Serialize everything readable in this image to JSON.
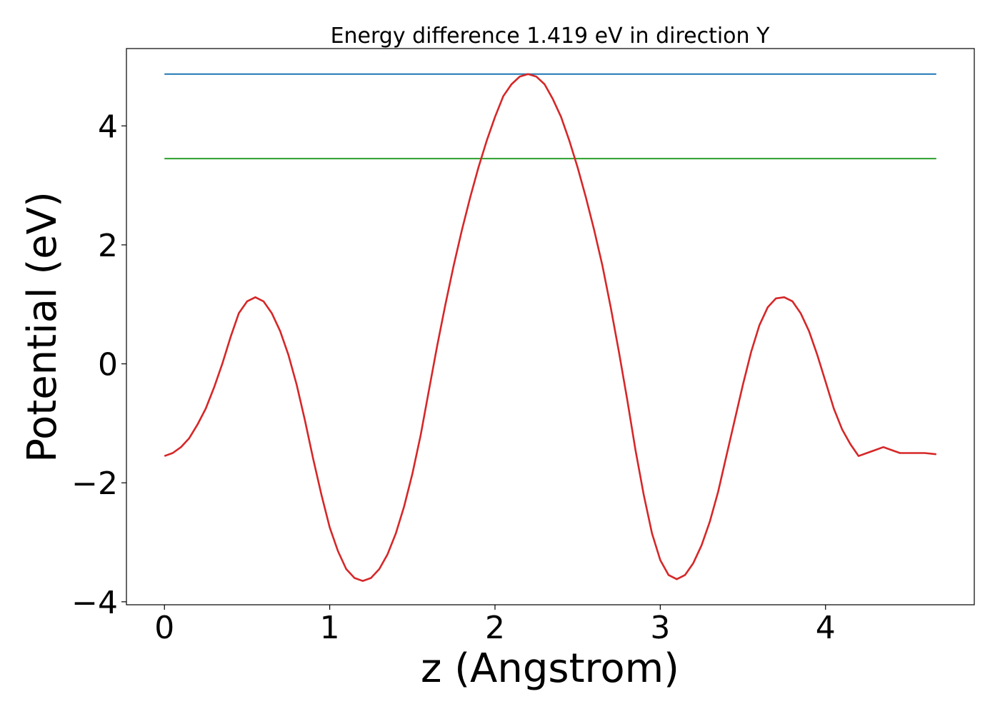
{
  "chart_data": {
    "type": "line",
    "title": "Energy difference 1.419 eV in direction Y",
    "xlabel": "z (Angstrom)",
    "ylabel": "Potential (eV)",
    "xlim": [
      -0.23,
      4.9
    ],
    "ylim": [
      -4.05,
      5.3
    ],
    "xticks": [
      {
        "value": 0,
        "label": "0"
      },
      {
        "value": 1,
        "label": "1"
      },
      {
        "value": 2,
        "label": "2"
      },
      {
        "value": 3,
        "label": "3"
      },
      {
        "value": 4,
        "label": "4"
      }
    ],
    "yticks": [
      {
        "value": -4,
        "label": "−4"
      },
      {
        "value": -2,
        "label": "−2"
      },
      {
        "value": 0,
        "label": "0"
      },
      {
        "value": 2,
        "label": "2"
      },
      {
        "value": 4,
        "label": "4"
      }
    ],
    "grid": false,
    "legend": "none",
    "series": [
      {
        "color": "#1f77b4",
        "x": [
          0,
          4.67
        ],
        "y": [
          4.87,
          4.87
        ]
      },
      {
        "color": "#2ca02c",
        "x": [
          0,
          4.67
        ],
        "y": [
          3.45,
          3.45
        ]
      },
      {
        "color": "#d62728",
        "x": [
          0,
          0.05,
          0.1,
          0.15,
          0.2,
          0.25,
          0.3,
          0.35,
          0.4,
          0.45,
          0.5,
          0.55,
          0.6,
          0.65,
          0.7,
          0.75,
          0.8,
          0.85,
          0.9,
          0.95,
          1.0,
          1.05,
          1.1,
          1.15,
          1.2,
          1.25,
          1.3,
          1.35,
          1.4,
          1.45,
          1.5,
          1.55,
          1.6,
          1.65,
          1.7,
          1.75,
          1.8,
          1.85,
          1.9,
          1.95,
          2.0,
          2.05,
          2.1,
          2.15,
          2.2,
          2.25,
          2.3,
          2.35,
          2.4,
          2.45,
          2.5,
          2.55,
          2.6,
          2.65,
          2.7,
          2.75,
          2.8,
          2.85,
          2.9,
          2.95,
          3.0,
          3.05,
          3.1,
          3.15,
          3.2,
          3.25,
          3.3,
          3.35,
          3.4,
          3.45,
          3.5,
          3.55,
          3.6,
          3.65,
          3.7,
          3.75,
          3.8,
          3.85,
          3.9,
          3.95,
          4.0,
          4.05,
          4.1,
          4.15,
          4.2,
          4.25,
          4.3,
          4.35,
          4.4,
          4.45,
          4.5,
          4.55,
          4.6,
          4.67
        ],
        "y": [
          -1.55,
          -1.5,
          -1.4,
          -1.25,
          -1.02,
          -0.75,
          -0.4,
          0.0,
          0.45,
          0.85,
          1.05,
          1.12,
          1.05,
          0.85,
          0.55,
          0.15,
          -0.35,
          -0.95,
          -1.6,
          -2.2,
          -2.75,
          -3.15,
          -3.45,
          -3.6,
          -3.65,
          -3.6,
          -3.45,
          -3.2,
          -2.85,
          -2.4,
          -1.85,
          -1.2,
          -0.45,
          0.3,
          1.0,
          1.65,
          2.25,
          2.8,
          3.3,
          3.75,
          4.15,
          4.5,
          4.7,
          4.83,
          4.87,
          4.83,
          4.7,
          4.45,
          4.15,
          3.75,
          3.3,
          2.8,
          2.25,
          1.65,
          0.95,
          0.2,
          -0.6,
          -1.45,
          -2.2,
          -2.85,
          -3.3,
          -3.55,
          -3.62,
          -3.55,
          -3.35,
          -3.05,
          -2.65,
          -2.15,
          -1.55,
          -0.95,
          -0.35,
          0.2,
          0.65,
          0.95,
          1.1,
          1.12,
          1.05,
          0.85,
          0.55,
          0.15,
          -0.3,
          -0.75,
          -1.1,
          -1.35,
          -1.55,
          -1.5,
          -1.45,
          -1.4,
          -1.45,
          -1.5,
          -1.5,
          -1.5,
          -1.5,
          -1.52
        ]
      }
    ]
  }
}
